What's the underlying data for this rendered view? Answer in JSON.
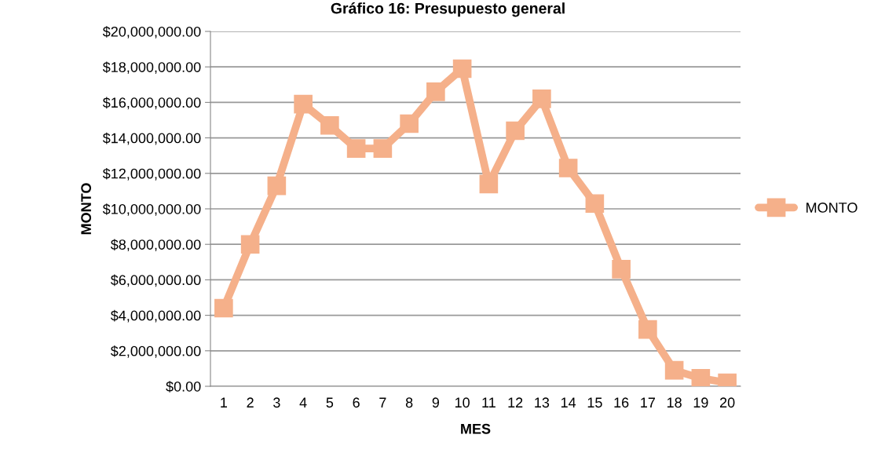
{
  "chart_data": {
    "type": "line",
    "title": "Gráfico 16: Presupuesto general",
    "xlabel": "MES",
    "ylabel": "MONTO",
    "categories": [
      "1",
      "2",
      "3",
      "4",
      "5",
      "6",
      "7",
      "8",
      "9",
      "10",
      "11",
      "12",
      "13",
      "14",
      "15",
      "16",
      "17",
      "18",
      "19",
      "20"
    ],
    "series": [
      {
        "name": "MONTO",
        "color": "#f5b08a",
        "values": [
          4400000,
          8000000,
          11300000,
          15900000,
          14700000,
          13400000,
          13400000,
          14800000,
          16600000,
          17900000,
          11400000,
          14400000,
          16200000,
          12300000,
          10300000,
          6600000,
          3200000,
          900000,
          450000,
          200000
        ]
      }
    ],
    "ylim": [
      0,
      20000000
    ],
    "yticks": [
      {
        "value": 0,
        "label": "$0.00"
      },
      {
        "value": 2000000,
        "label": "$2,000,000.00"
      },
      {
        "value": 4000000,
        "label": "$4,000,000.00"
      },
      {
        "value": 6000000,
        "label": "$6,000,000.00"
      },
      {
        "value": 8000000,
        "label": "$8,000,000.00"
      },
      {
        "value": 10000000,
        "label": "$10,000,000.00"
      },
      {
        "value": 12000000,
        "label": "$12,000,000.00"
      },
      {
        "value": 14000000,
        "label": "$14,000,000.00"
      },
      {
        "value": 16000000,
        "label": "$16,000,000.00"
      },
      {
        "value": 18000000,
        "label": "$18,000,000.00"
      },
      {
        "value": 20000000,
        "label": "$20,000,000.00"
      }
    ],
    "grid": "y",
    "legend": "right",
    "marker": "square",
    "line_style": "solid"
  }
}
